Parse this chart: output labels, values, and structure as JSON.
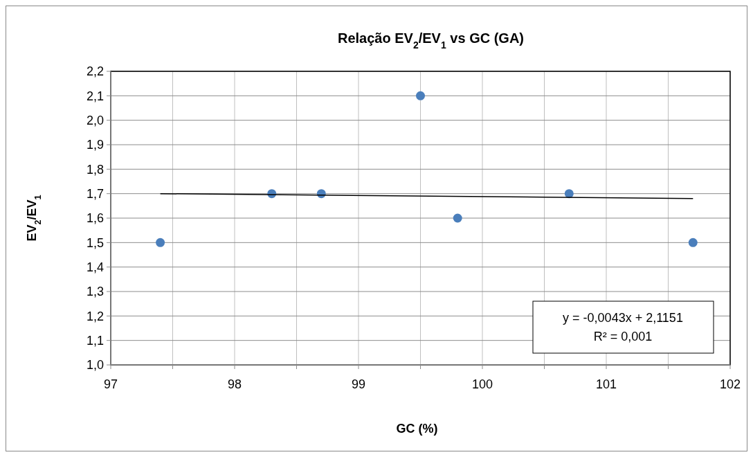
{
  "chart_data": {
    "type": "scatter",
    "title": "Relação EV$_{2}$/EV$_{1}$ vs GC (GA)",
    "xlabel": "GC (%)",
    "ylabel": "EV$_{2}$/EV$_{1}$",
    "series": [
      {
        "color": "#4a7ebb",
        "marker": "circle",
        "x": [
          97.4,
          98.3,
          98.7,
          99.5,
          99.8,
          100.7,
          101.7
        ],
        "values": [
          1.5,
          1.7,
          1.7,
          2.1,
          1.6,
          1.7,
          1.5
        ]
      },
      {
        "type": "line",
        "color": "#000000",
        "marker": "none",
        "x": [
          97.4,
          101.7
        ],
        "values": [
          1.7,
          1.68
        ]
      }
    ],
    "xlim": [
      97,
      102
    ],
    "xticks": [
      97,
      {
        "value": 97.5,
        "label": null
      },
      98,
      {
        "value": 98.5,
        "label": null
      },
      99,
      {
        "value": 99.5,
        "label": null
      },
      100,
      {
        "value": 100.5,
        "label": null
      },
      101,
      {
        "value": 101.5,
        "label": null
      },
      102
    ],
    "ylim": [
      1.0,
      2.2
    ],
    "yticks": [
      {
        "value": 1.0,
        "label": "1,0"
      },
      {
        "value": 1.1,
        "label": "1,1"
      },
      {
        "value": 1.2,
        "label": "1,2"
      },
      {
        "value": 1.3,
        "label": "1,3"
      },
      {
        "value": 1.4,
        "label": "1,4"
      },
      {
        "value": 1.5,
        "label": "1,5"
      },
      {
        "value": 1.6,
        "label": "1,6"
      },
      {
        "value": 1.7,
        "label": "1,7"
      },
      {
        "value": 1.8,
        "label": "1,8"
      },
      {
        "value": 1.9,
        "label": "1,9"
      },
      {
        "value": 2.0,
        "label": "2,0"
      },
      {
        "value": 2.1,
        "label": "2,1"
      },
      {
        "value": 2.2,
        "label": "2,2"
      }
    ],
    "grid": true,
    "annotations": [
      "y = -0,0043x + 2,1151",
      "R² = 0,001"
    ]
  }
}
